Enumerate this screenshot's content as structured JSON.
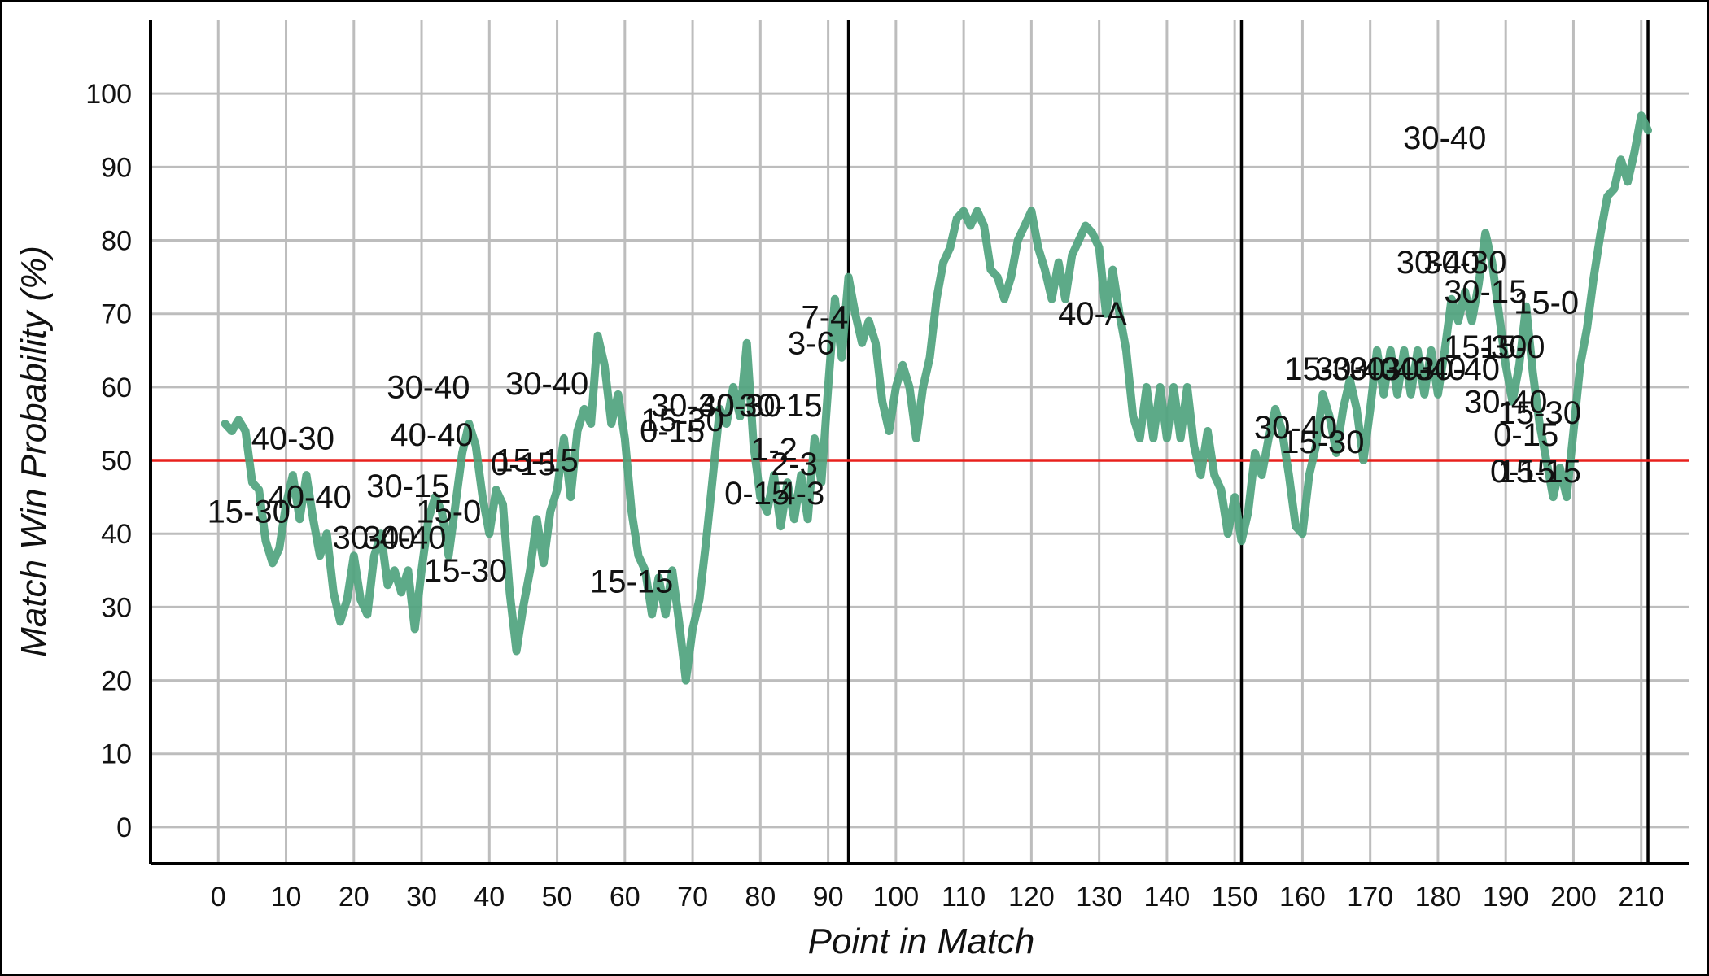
{
  "chart_data": {
    "type": "line",
    "xlabel": "Point in Match",
    "ylabel": "Match Win Probability (%)",
    "xlim": [
      -10,
      217
    ],
    "ylim": [
      -5,
      110
    ],
    "xticks": [
      0,
      10,
      20,
      30,
      40,
      50,
      60,
      70,
      80,
      90,
      100,
      110,
      120,
      130,
      140,
      150,
      160,
      170,
      180,
      190,
      200,
      210
    ],
    "yticks": [
      0,
      10,
      20,
      30,
      40,
      50,
      60,
      70,
      80,
      90,
      100
    ],
    "grid": true,
    "colors": {
      "series": "#4fa37e",
      "reference": "#e8211d",
      "set_marker": "#000000",
      "grid": "#bdbdbd"
    },
    "reference_line": {
      "y": 50
    },
    "set_boundaries": [
      93,
      151,
      211
    ],
    "series": [
      {
        "points": [
          [
            1,
            55
          ],
          [
            2,
            54
          ],
          [
            3,
            55.5
          ],
          [
            4,
            54
          ],
          [
            5,
            47
          ],
          [
            6,
            46
          ],
          [
            7,
            39
          ],
          [
            8,
            36
          ],
          [
            9,
            38
          ],
          [
            10,
            44
          ],
          [
            11,
            48
          ],
          [
            12,
            42
          ],
          [
            13,
            48
          ],
          [
            14,
            42
          ],
          [
            15,
            37
          ],
          [
            16,
            40
          ],
          [
            17,
            32
          ],
          [
            18,
            28
          ],
          [
            19,
            31
          ],
          [
            20,
            37
          ],
          [
            21,
            31
          ],
          [
            22,
            29
          ],
          [
            23,
            37
          ],
          [
            24,
            40
          ],
          [
            25,
            33
          ],
          [
            26,
            35
          ],
          [
            27,
            32
          ],
          [
            28,
            35
          ],
          [
            29,
            27
          ],
          [
            30,
            35
          ],
          [
            31,
            42
          ],
          [
            32,
            45
          ],
          [
            33,
            43
          ],
          [
            34,
            37
          ],
          [
            35,
            44
          ],
          [
            36,
            51
          ],
          [
            37,
            55
          ],
          [
            38,
            52
          ],
          [
            39,
            45
          ],
          [
            40,
            40
          ],
          [
            41,
            46
          ],
          [
            42,
            44
          ],
          [
            43,
            32
          ],
          [
            44,
            24
          ],
          [
            45,
            30
          ],
          [
            46,
            35
          ],
          [
            47,
            42
          ],
          [
            48,
            36
          ],
          [
            49,
            43
          ],
          [
            50,
            46
          ],
          [
            51,
            53
          ],
          [
            52,
            45
          ],
          [
            53,
            54
          ],
          [
            54,
            57
          ],
          [
            55,
            55
          ],
          [
            56,
            67
          ],
          [
            57,
            63
          ],
          [
            58,
            55
          ],
          [
            59,
            59
          ],
          [
            60,
            53
          ],
          [
            61,
            43
          ],
          [
            62,
            37
          ],
          [
            63,
            35
          ],
          [
            64,
            29
          ],
          [
            65,
            34
          ],
          [
            66,
            29
          ],
          [
            67,
            35
          ],
          [
            68,
            28
          ],
          [
            69,
            20
          ],
          [
            70,
            27
          ],
          [
            71,
            31
          ],
          [
            72,
            39
          ],
          [
            73,
            48
          ],
          [
            74,
            57
          ],
          [
            75,
            55
          ],
          [
            76,
            60
          ],
          [
            77,
            56
          ],
          [
            78,
            66
          ],
          [
            79,
            52
          ],
          [
            80,
            45
          ],
          [
            81,
            43
          ],
          [
            82,
            48
          ],
          [
            83,
            41
          ],
          [
            84,
            47
          ],
          [
            85,
            42
          ],
          [
            86,
            48
          ],
          [
            87,
            42
          ],
          [
            88,
            53
          ],
          [
            89,
            47
          ],
          [
            90,
            60
          ],
          [
            91,
            72
          ],
          [
            92,
            64
          ],
          [
            93,
            75
          ],
          [
            94,
            70
          ],
          [
            95,
            66
          ],
          [
            96,
            69
          ],
          [
            97,
            66
          ],
          [
            98,
            58
          ],
          [
            99,
            54
          ],
          [
            100,
            60
          ],
          [
            101,
            63
          ],
          [
            102,
            60
          ],
          [
            103,
            53
          ],
          [
            104,
            60
          ],
          [
            105,
            64
          ],
          [
            106,
            72
          ],
          [
            107,
            77
          ],
          [
            108,
            79
          ],
          [
            109,
            83
          ],
          [
            110,
            84
          ],
          [
            111,
            82
          ],
          [
            112,
            84
          ],
          [
            113,
            82
          ],
          [
            114,
            76
          ],
          [
            115,
            75
          ],
          [
            116,
            72
          ],
          [
            117,
            75
          ],
          [
            118,
            80
          ],
          [
            119,
            82
          ],
          [
            120,
            84
          ],
          [
            121,
            79
          ],
          [
            122,
            76
          ],
          [
            123,
            72
          ],
          [
            124,
            77
          ],
          [
            125,
            72
          ],
          [
            126,
            78
          ],
          [
            127,
            80
          ],
          [
            128,
            82
          ],
          [
            129,
            81
          ],
          [
            130,
            79
          ],
          [
            131,
            70
          ],
          [
            132,
            76
          ],
          [
            133,
            70
          ],
          [
            134,
            65
          ],
          [
            135,
            56
          ],
          [
            136,
            53
          ],
          [
            137,
            60
          ],
          [
            138,
            53
          ],
          [
            139,
            60
          ],
          [
            140,
            53
          ],
          [
            141,
            60
          ],
          [
            142,
            53
          ],
          [
            143,
            60
          ],
          [
            144,
            52
          ],
          [
            145,
            48
          ],
          [
            146,
            54
          ],
          [
            147,
            48
          ],
          [
            148,
            46
          ],
          [
            149,
            40
          ],
          [
            150,
            45
          ],
          [
            151,
            39
          ],
          [
            152,
            43
          ],
          [
            153,
            51
          ],
          [
            154,
            48
          ],
          [
            155,
            53
          ],
          [
            156,
            57
          ],
          [
            157,
            54
          ],
          [
            158,
            48
          ],
          [
            159,
            41
          ],
          [
            160,
            40
          ],
          [
            161,
            48
          ],
          [
            162,
            52
          ],
          [
            163,
            59
          ],
          [
            164,
            56
          ],
          [
            165,
            51
          ],
          [
            166,
            57
          ],
          [
            167,
            61
          ],
          [
            168,
            57
          ],
          [
            169,
            50
          ],
          [
            170,
            57
          ],
          [
            171,
            65
          ],
          [
            172,
            59
          ],
          [
            173,
            65
          ],
          [
            174,
            59
          ],
          [
            175,
            65
          ],
          [
            176,
            59
          ],
          [
            177,
            65
          ],
          [
            178,
            59
          ],
          [
            179,
            65
          ],
          [
            180,
            59
          ],
          [
            181,
            65
          ],
          [
            182,
            72
          ],
          [
            183,
            69
          ],
          [
            184,
            73
          ],
          [
            185,
            69
          ],
          [
            186,
            74
          ],
          [
            187,
            81
          ],
          [
            188,
            77
          ],
          [
            189,
            70
          ],
          [
            190,
            63
          ],
          [
            191,
            58
          ],
          [
            192,
            63
          ],
          [
            193,
            71
          ],
          [
            194,
            62
          ],
          [
            195,
            55
          ],
          [
            196,
            50
          ],
          [
            197,
            45
          ],
          [
            198,
            49
          ],
          [
            199,
            45
          ],
          [
            200,
            54
          ],
          [
            201,
            63
          ],
          [
            202,
            68
          ],
          [
            203,
            75
          ],
          [
            204,
            81
          ],
          [
            205,
            86
          ],
          [
            206,
            87
          ],
          [
            207,
            91
          ],
          [
            208,
            88
          ],
          [
            209,
            92
          ],
          [
            210,
            97
          ],
          [
            211,
            95
          ]
        ]
      }
    ],
    "annotations": [
      {
        "text": "40-30",
        "x": 11,
        "y": 51.5
      },
      {
        "text": "15-30",
        "x": 4.5,
        "y": 41.5
      },
      {
        "text": "40-40",
        "x": 13.5,
        "y": 43.5
      },
      {
        "text": "30-40",
        "x": 23,
        "y": 38
      },
      {
        "text": "30-40",
        "x": 27.5,
        "y": 38
      },
      {
        "text": "30-40",
        "x": 31,
        "y": 58.5
      },
      {
        "text": "40-40",
        "x": 31.5,
        "y": 52
      },
      {
        "text": "30-15",
        "x": 28,
        "y": 45
      },
      {
        "text": "15-0",
        "x": 34,
        "y": 41.5
      },
      {
        "text": "15-30",
        "x": 36.5,
        "y": 33.5
      },
      {
        "text": "0-15",
        "x": 45,
        "y": 48
      },
      {
        "text": "15-15",
        "x": 47,
        "y": 48.5
      },
      {
        "text": "30-40",
        "x": 48.5,
        "y": 59
      },
      {
        "text": "15-15",
        "x": 61,
        "y": 32
      },
      {
        "text": "0-15",
        "x": 67,
        "y": 52.5
      },
      {
        "text": "15-30",
        "x": 68.5,
        "y": 54
      },
      {
        "text": "30-30",
        "x": 70,
        "y": 56
      },
      {
        "text": "40-30",
        "x": 77,
        "y": 56
      },
      {
        "text": "30-15",
        "x": 83,
        "y": 56
      },
      {
        "text": "0-15",
        "x": 79.5,
        "y": 44
      },
      {
        "text": "1-2",
        "x": 82,
        "y": 50
      },
      {
        "text": "2-3",
        "x": 85,
        "y": 48
      },
      {
        "text": "4-3",
        "x": 86,
        "y": 44
      },
      {
        "text": "7-4",
        "x": 89.5,
        "y": 68
      },
      {
        "text": "3-6",
        "x": 87.5,
        "y": 64.5
      },
      {
        "text": "40-A",
        "x": 129,
        "y": 68.5
      },
      {
        "text": "30-40",
        "x": 159,
        "y": 53
      },
      {
        "text": "15-30",
        "x": 163,
        "y": 51
      },
      {
        "text": "15-30",
        "x": 163.5,
        "y": 61
      },
      {
        "text": "30-40",
        "x": 168,
        "y": 61
      },
      {
        "text": "30-40",
        "x": 173,
        "y": 61
      },
      {
        "text": "30-40",
        "x": 178,
        "y": 61
      },
      {
        "text": "30-40",
        "x": 183,
        "y": 61
      },
      {
        "text": "30-40",
        "x": 181,
        "y": 92.5
      },
      {
        "text": "30-40",
        "x": 180,
        "y": 75.5
      },
      {
        "text": "30-30",
        "x": 184,
        "y": 75.5
      },
      {
        "text": "30-15",
        "x": 187,
        "y": 71.5
      },
      {
        "text": "15-0",
        "x": 196,
        "y": 70
      },
      {
        "text": "15-30",
        "x": 187,
        "y": 64
      },
      {
        "text": "15-0",
        "x": 191,
        "y": 64
      },
      {
        "text": "30-40",
        "x": 190,
        "y": 56.5
      },
      {
        "text": "15-30",
        "x": 195,
        "y": 55
      },
      {
        "text": "0-15",
        "x": 193,
        "y": 52
      },
      {
        "text": "0-15",
        "x": 192.5,
        "y": 47
      },
      {
        "text": "15-15",
        "x": 195,
        "y": 47
      }
    ]
  }
}
